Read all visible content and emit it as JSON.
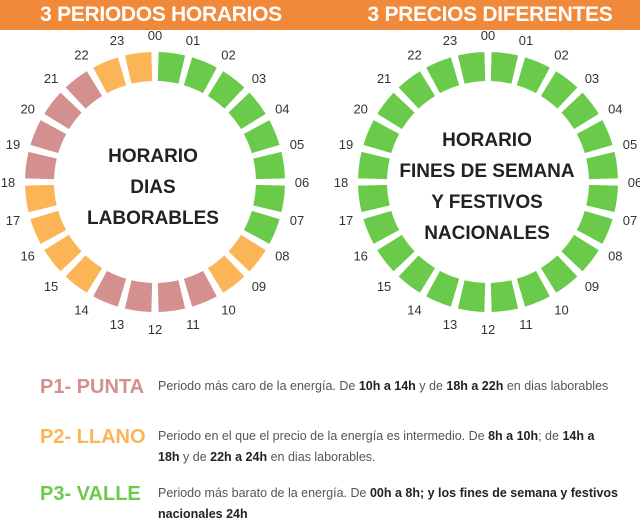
{
  "header": {
    "left_title": "3 PERIODOS HORARIOS",
    "right_title": "3 PRECIOS DIFERENTES",
    "background": "#f0893a"
  },
  "colors": {
    "punta": "#d48f8f",
    "llano": "#fbb557",
    "valle": "#6acb4a"
  },
  "hour_labels": [
    "00",
    "01",
    "02",
    "03",
    "04",
    "05",
    "06",
    "07",
    "08",
    "09",
    "10",
    "11",
    "12",
    "13",
    "14",
    "15",
    "16",
    "17",
    "18",
    "19",
    "20",
    "21",
    "22",
    "23"
  ],
  "left_ring": {
    "center_lines": [
      "HORARIO",
      "DIAS",
      "LABORABLES"
    ],
    "hour_periods": [
      "valle",
      "valle",
      "valle",
      "valle",
      "valle",
      "valle",
      "valle",
      "valle",
      "llano",
      "llano",
      "punta",
      "punta",
      "punta",
      "punta",
      "llano",
      "llano",
      "llano",
      "llano",
      "punta",
      "punta",
      "punta",
      "punta",
      "llano",
      "llano"
    ]
  },
  "right_ring": {
    "center_lines": [
      "HORARIO",
      "FINES DE SEMANA",
      "Y FESTIVOS",
      "NACIONALES"
    ],
    "hour_periods": [
      "valle",
      "valle",
      "valle",
      "valle",
      "valle",
      "valle",
      "valle",
      "valle",
      "valle",
      "valle",
      "valle",
      "valle",
      "valle",
      "valle",
      "valle",
      "valle",
      "valle",
      "valle",
      "valle",
      "valle",
      "valle",
      "valle",
      "valle",
      "valle"
    ]
  },
  "legend": [
    {
      "label": "P1- PUNTA",
      "color": "#d48f8f",
      "desc_parts": [
        {
          "t": "Periodo más caro de la energía. De ",
          "b": false
        },
        {
          "t": "10h a 14h",
          "b": true
        },
        {
          "t": " y de ",
          "b": false
        },
        {
          "t": "18h a 22h",
          "b": true
        },
        {
          "t": " en dias laborables",
          "b": false
        }
      ]
    },
    {
      "label": "P2- LLANO",
      "color": "#fbb557",
      "desc_parts": [
        {
          "t": "Periodo en el que el precio de la energía es intermedio. De ",
          "b": false
        },
        {
          "t": "8h a 10h",
          "b": true
        },
        {
          "t": "; de ",
          "b": false
        },
        {
          "t": "14h a 18h",
          "b": true
        },
        {
          "t": " y de ",
          "b": false
        },
        {
          "t": "22h a 24h",
          "b": true
        },
        {
          "t": " en dias laborables.",
          "b": false
        }
      ]
    },
    {
      "label": "P3- VALLE",
      "color": "#6acb4a",
      "desc_parts": [
        {
          "t": "Periodo más barato de la energía. De ",
          "b": false
        },
        {
          "t": "00h a 8h; y los fines de semana y festivos nacionales 24h",
          "b": true
        }
      ]
    }
  ]
}
